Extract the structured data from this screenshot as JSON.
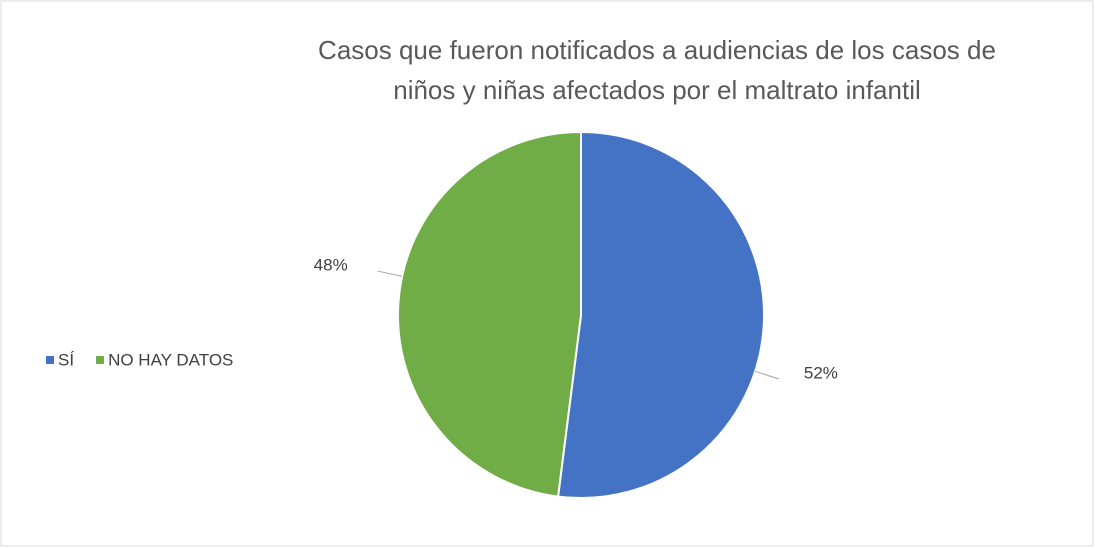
{
  "chart_data": {
    "type": "pie",
    "title": "Casos que fueron notificados a audiencias de los casos de niños y niñas afectados por el maltrato infantil",
    "categories": [
      "SÍ",
      "NO HAY DATOS"
    ],
    "values": [
      52,
      48
    ],
    "value_labels": [
      "52%",
      "48%"
    ],
    "colors": [
      "#4472c4",
      "#70ad47"
    ],
    "legend": "left"
  }
}
